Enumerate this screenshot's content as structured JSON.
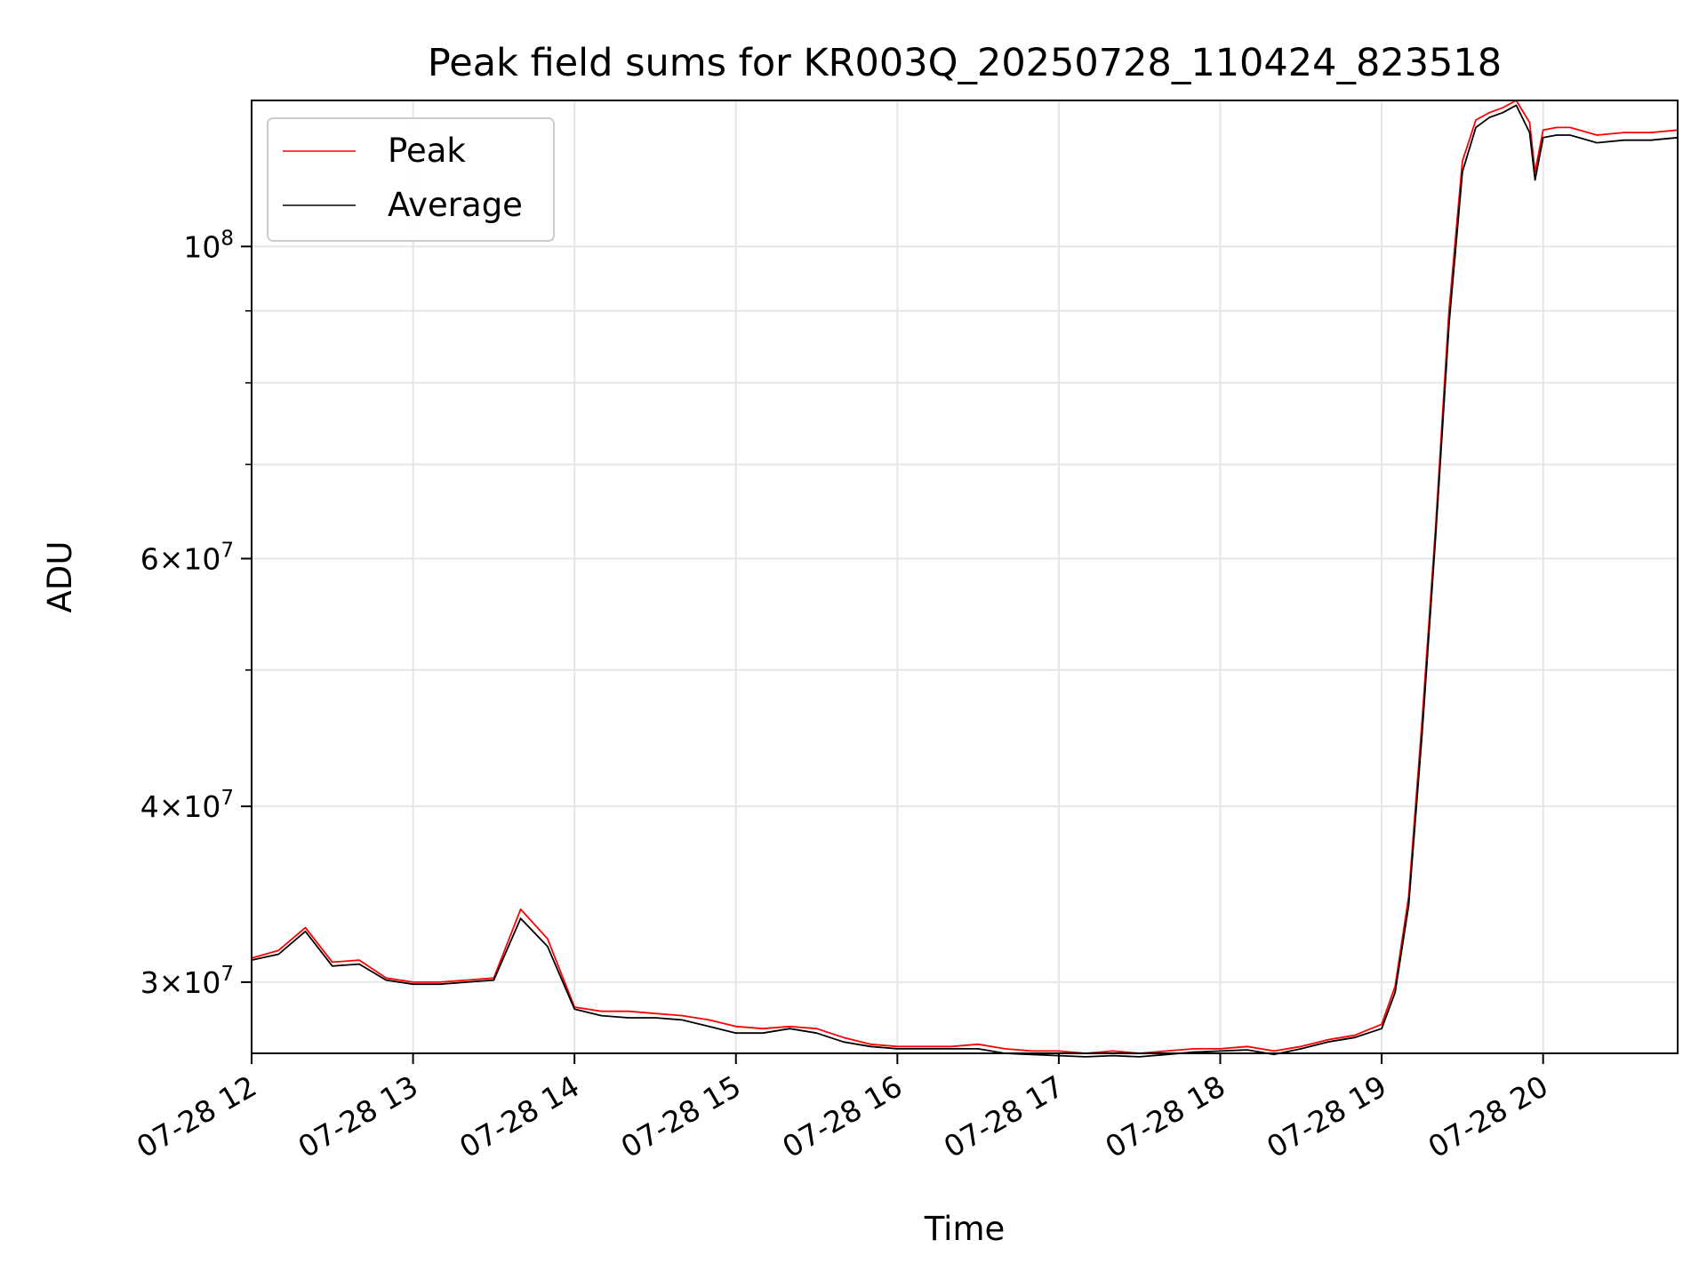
{
  "chart_data": {
    "type": "line",
    "title": "Peak field sums for KR003Q_20250728_110424_823518",
    "xlabel": "Time",
    "ylabel": "ADU",
    "x_unit": "hour",
    "xlim": [
      "07-28 12:00",
      "07-28 20:50"
    ],
    "ylim": [
      26700000,
      127000000
    ],
    "yscale": "log",
    "grid": true,
    "legend_position": "upper-left",
    "x_tick_labels": [
      "07-28 12",
      "07-28 13",
      "07-28 14",
      "07-28 15",
      "07-28 16",
      "07-28 17",
      "07-28 18",
      "07-28 19",
      "07-28 20"
    ],
    "y_ticks": [
      {
        "value": 30000000,
        "mantissa": "3",
        "exp": "7"
      },
      {
        "value": 40000000,
        "mantissa": "4",
        "exp": "7"
      },
      {
        "value": 60000000,
        "mantissa": "6",
        "exp": "7"
      },
      {
        "value": 100000000,
        "mantissa": "",
        "exp": "8"
      }
    ],
    "y_minor_ticks": [
      50000000,
      70000000,
      80000000,
      90000000
    ],
    "x_times": [
      "12:00",
      "12:10",
      "12:20",
      "12:30",
      "12:40",
      "12:50",
      "13:00",
      "13:10",
      "13:20",
      "13:30",
      "13:40",
      "13:50",
      "14:00",
      "14:10",
      "14:20",
      "14:30",
      "14:40",
      "14:50",
      "15:00",
      "15:10",
      "15:20",
      "15:30",
      "15:40",
      "15:50",
      "16:00",
      "16:10",
      "16:20",
      "16:30",
      "16:40",
      "16:50",
      "17:00",
      "17:10",
      "17:20",
      "17:30",
      "17:40",
      "17:50",
      "18:00",
      "18:10",
      "18:20",
      "18:30",
      "18:40",
      "18:50",
      "19:00",
      "19:05",
      "19:10",
      "19:15",
      "19:20",
      "19:25",
      "19:30",
      "19:35",
      "19:40",
      "19:45",
      "19:50",
      "19:55",
      "19:57",
      "20:00",
      "20:05",
      "20:10",
      "20:20",
      "20:30",
      "20:40",
      "20:50"
    ],
    "series": [
      {
        "name": "Peak",
        "color": "#ff0000",
        "values": [
          31200000,
          31600000,
          32800000,
          31000000,
          31100000,
          30200000,
          30000000,
          30000000,
          30100000,
          30200000,
          33800000,
          32200000,
          28800000,
          28600000,
          28600000,
          28500000,
          28400000,
          28200000,
          27900000,
          27800000,
          27900000,
          27800000,
          27400000,
          27100000,
          27000000,
          27000000,
          27000000,
          27100000,
          26900000,
          26800000,
          26800000,
          26700000,
          26800000,
          26700000,
          26800000,
          26900000,
          26900000,
          27000000,
          26800000,
          27000000,
          27300000,
          27500000,
          28000000,
          29800000,
          34500000,
          46000000,
          63000000,
          90000000,
          115000000,
          123000000,
          124500000,
          125500000,
          127000000,
          122500000,
          113000000,
          121000000,
          121500000,
          121500000,
          120000000,
          120500000,
          120500000,
          121000000
        ]
      },
      {
        "name": "Average",
        "color": "#000000",
        "values": [
          31100000,
          31400000,
          32600000,
          30800000,
          30900000,
          30100000,
          29900000,
          29900000,
          30000000,
          30100000,
          33300000,
          31800000,
          28700000,
          28400000,
          28300000,
          28300000,
          28200000,
          27900000,
          27600000,
          27600000,
          27800000,
          27600000,
          27200000,
          27000000,
          26900000,
          26900000,
          26900000,
          26900000,
          26700000,
          26650000,
          26600000,
          26550000,
          26600000,
          26550000,
          26650000,
          26750000,
          26800000,
          26850000,
          26650000,
          26900000,
          27200000,
          27400000,
          27800000,
          29500000,
          34000000,
          45000000,
          62000000,
          88000000,
          113000000,
          121500000,
          123500000,
          124500000,
          126000000,
          120500000,
          111500000,
          119500000,
          120000000,
          120000000,
          118500000,
          119000000,
          119000000,
          119500000
        ]
      }
    ]
  }
}
